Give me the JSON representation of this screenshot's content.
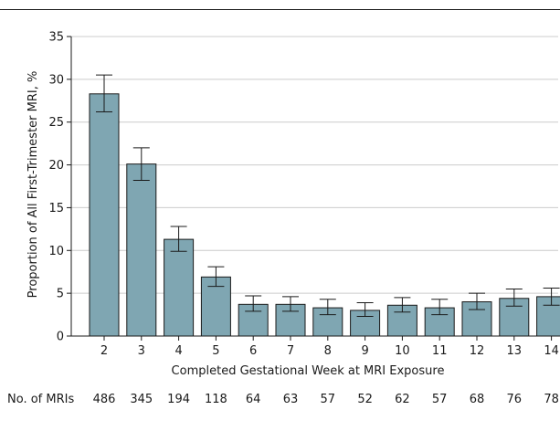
{
  "chart_data": {
    "type": "bar",
    "categories": [
      "2",
      "3",
      "4",
      "5",
      "6",
      "7",
      "8",
      "9",
      "10",
      "11",
      "12",
      "13",
      "14"
    ],
    "series": [
      {
        "values": [
          28.3,
          20.1,
          11.3,
          6.9,
          3.7,
          3.7,
          3.3,
          3.0,
          3.6,
          3.3,
          4.0,
          4.4,
          4.6
        ],
        "error_low": [
          26.2,
          18.2,
          9.9,
          5.8,
          2.9,
          2.9,
          2.5,
          2.3,
          2.8,
          2.5,
          3.1,
          3.5,
          3.6
        ],
        "error_high": [
          30.5,
          22.0,
          12.8,
          8.1,
          4.7,
          4.6,
          4.3,
          3.9,
          4.5,
          4.3,
          5.0,
          5.5,
          5.6
        ]
      }
    ],
    "xlabel": "Completed Gestational Week at MRI Exposure",
    "ylabel": "Proportion of All First-Trimester MRI, %",
    "ylim": [
      0,
      35
    ],
    "yticks": [
      0,
      5,
      10,
      15,
      20,
      25,
      30,
      35
    ],
    "grid": true,
    "bar_color": "#7fa6b2",
    "bar_edge_color": "#1a1a1a",
    "grid_color": "#cccccc"
  },
  "table": {
    "label": "No. of MRIs",
    "values": [
      "486",
      "345",
      "194",
      "118",
      "64",
      "63",
      "57",
      "52",
      "62",
      "57",
      "68",
      "76",
      "78"
    ]
  }
}
